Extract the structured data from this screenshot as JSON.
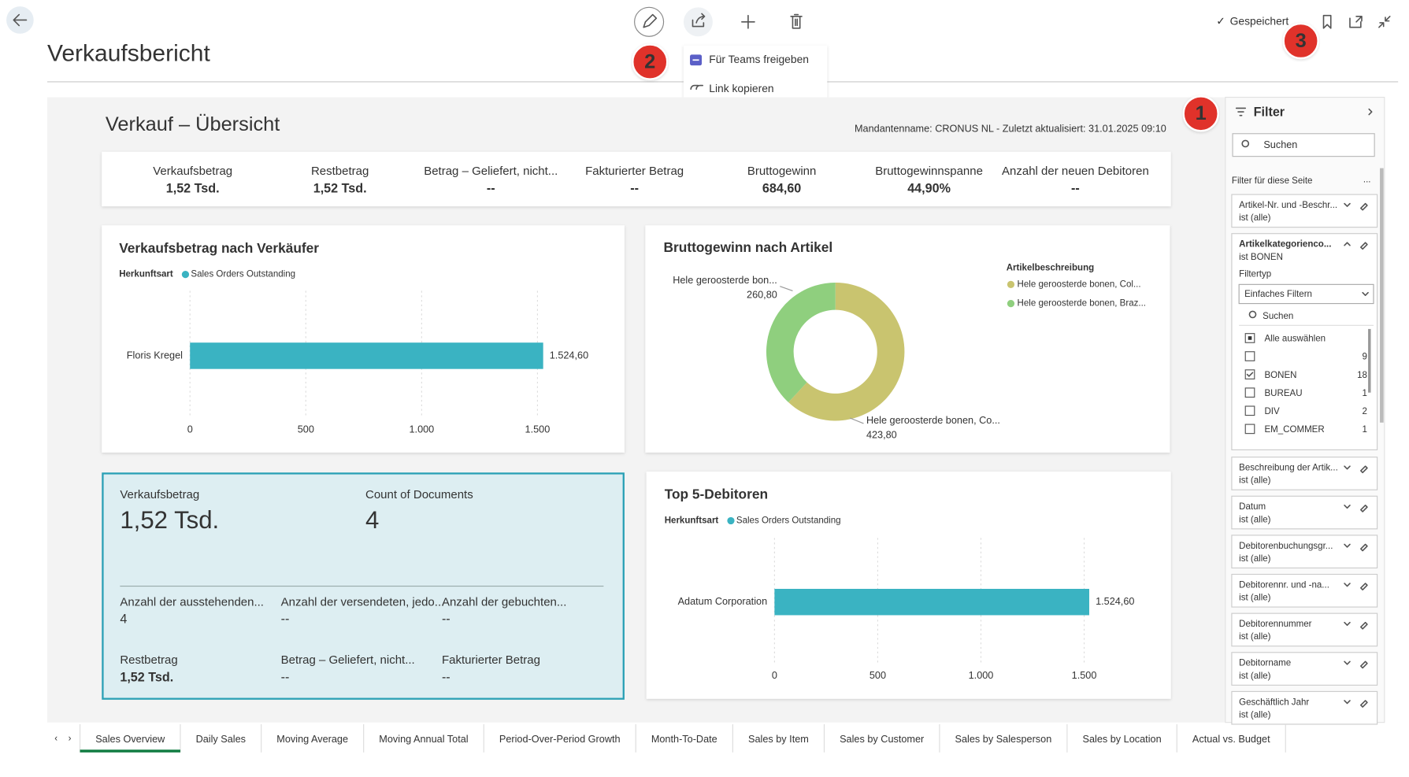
{
  "header": {
    "title": "Verkaufsbericht",
    "status": "Gespeichert"
  },
  "share_menu": {
    "items": [
      "Für Teams freigeben",
      "Link kopieren"
    ]
  },
  "annotations": [
    1,
    2,
    3
  ],
  "report": {
    "title": "Verkauf – Übersicht",
    "meta": "Mandantenname: CRONUS NL - Zuletzt aktualisiert: 31.01.2025 09:10",
    "kpis": [
      {
        "label": "Verkaufsbetrag",
        "value": "1,52 Tsd."
      },
      {
        "label": "Restbetrag",
        "value": "1,52 Tsd."
      },
      {
        "label": "Betrag – Geliefert, nicht...",
        "value": "--"
      },
      {
        "label": "Fakturierter Betrag",
        "value": "--"
      },
      {
        "label": "Bruttogewinn",
        "value": "684,60"
      },
      {
        "label": "Bruttogewinnspanne",
        "value": "44,90%"
      },
      {
        "label": "Anzahl der neuen Debitoren",
        "value": "--"
      }
    ],
    "card": {
      "main": [
        {
          "label": "Verkaufsbetrag",
          "value": "1,52 Tsd."
        },
        {
          "label": "Count of Documents",
          "value": "4"
        }
      ],
      "fields": [
        {
          "label": "Anzahl der ausstehenden...",
          "value": "4"
        },
        {
          "label": "Anzahl der versendeten, jedo...",
          "value": "--"
        },
        {
          "label": "Anzahl der gebuchten...",
          "value": "--"
        },
        {
          "label": "Restbetrag",
          "value": "1,52 Tsd."
        },
        {
          "label": "Betrag – Geliefert, nicht...",
          "value": "--"
        },
        {
          "label": "Fakturierter Betrag",
          "value": "--"
        }
      ]
    }
  },
  "chart_data": [
    {
      "type": "hbar",
      "title": "Verkaufsbetrag nach Verkäufer",
      "legend_title": "Herkunftsart",
      "categories": [
        "Floris Kregel"
      ],
      "series": [
        {
          "name": "Sales Orders Outstanding",
          "color": "#3ab3c2",
          "values": [
            1524.6
          ],
          "value_labels": [
            "1.524,60"
          ]
        }
      ],
      "xlim": [
        0,
        1550
      ],
      "xticks": [
        0,
        500,
        {
          "value": 1000,
          "label": "1.000"
        },
        {
          "value": 1500,
          "label": "1.500"
        }
      ],
      "grid": true
    },
    {
      "type": "pie",
      "title": "Bruttogewinn nach Artikel",
      "legend_title": "Artikelbeschreibung",
      "donut": true,
      "categories": [
        "Hele geroosterde bonen, Col...",
        "Hele geroosterde bonen, Braz..."
      ],
      "slice_labels": [
        "Hele geroosterde bonen, Co...",
        "Hele geroosterde bon..."
      ],
      "values": [
        423.8,
        260.8
      ],
      "value_labels": [
        "423,80",
        "260,80"
      ],
      "colors": [
        "#c9c46f",
        "#8fcf7e"
      ]
    },
    {
      "type": "hbar",
      "title": "Top 5-Debitoren",
      "legend_title": "Herkunftsart",
      "categories": [
        "Adatum Corporation"
      ],
      "series": [
        {
          "name": "Sales Orders Outstanding",
          "color": "#3ab3c2",
          "values": [
            1524.6
          ],
          "value_labels": [
            "1.524,60"
          ]
        }
      ],
      "xlim": [
        0,
        1550
      ],
      "xticks": [
        0,
        500,
        {
          "value": 1000,
          "label": "1.000"
        },
        {
          "value": 1500,
          "label": "1.500"
        }
      ],
      "grid": true
    }
  ],
  "filter_pane": {
    "title": "Filter",
    "search": "Suchen",
    "section": "Filter für diese Seite",
    "more": "...",
    "filters": [
      {
        "name": "Artikel-Nr. und -Beschr...",
        "state": "ist (alle)"
      },
      {
        "name": "Artikelkategorienco...",
        "state": "ist BONEN",
        "expanded": true
      },
      {
        "name": "Beschreibung der Artik...",
        "state": "ist (alle)"
      },
      {
        "name": "Datum",
        "state": "ist (alle)"
      },
      {
        "name": "Debitorenbuchungsgr...",
        "state": "ist (alle)"
      },
      {
        "name": "Debitorennr. und -na...",
        "state": "ist (alle)"
      },
      {
        "name": "Debitorennummer",
        "state": "ist (alle)"
      },
      {
        "name": "Debitorname",
        "state": "ist (alle)"
      },
      {
        "name": "Geschäftlich Jahr",
        "state": "ist (alle)"
      }
    ],
    "expanded": {
      "filter_type_label": "Filtertyp",
      "filter_type": "Einfaches Filtern",
      "search": "Suchen",
      "options": [
        {
          "label": "Alle auswählen",
          "checked": "partial"
        },
        {
          "count": 9
        },
        {
          "label": "BONEN",
          "count": 18,
          "checked": true
        },
        {
          "label": "BUREAU",
          "count": 1
        },
        {
          "label": "DIV",
          "count": 2
        },
        {
          "label": "EM_COMMER",
          "count": 1
        }
      ]
    }
  },
  "tabs": {
    "items": [
      "Sales Overview",
      "Daily Sales",
      "Moving Average",
      "Moving Annual Total",
      "Period-Over-Period Growth",
      "Month-To-Date",
      "Sales by Item",
      "Sales by Customer",
      "Sales by Salesperson",
      "Sales by Location",
      "Actual vs. Budget"
    ],
    "active": 0
  }
}
